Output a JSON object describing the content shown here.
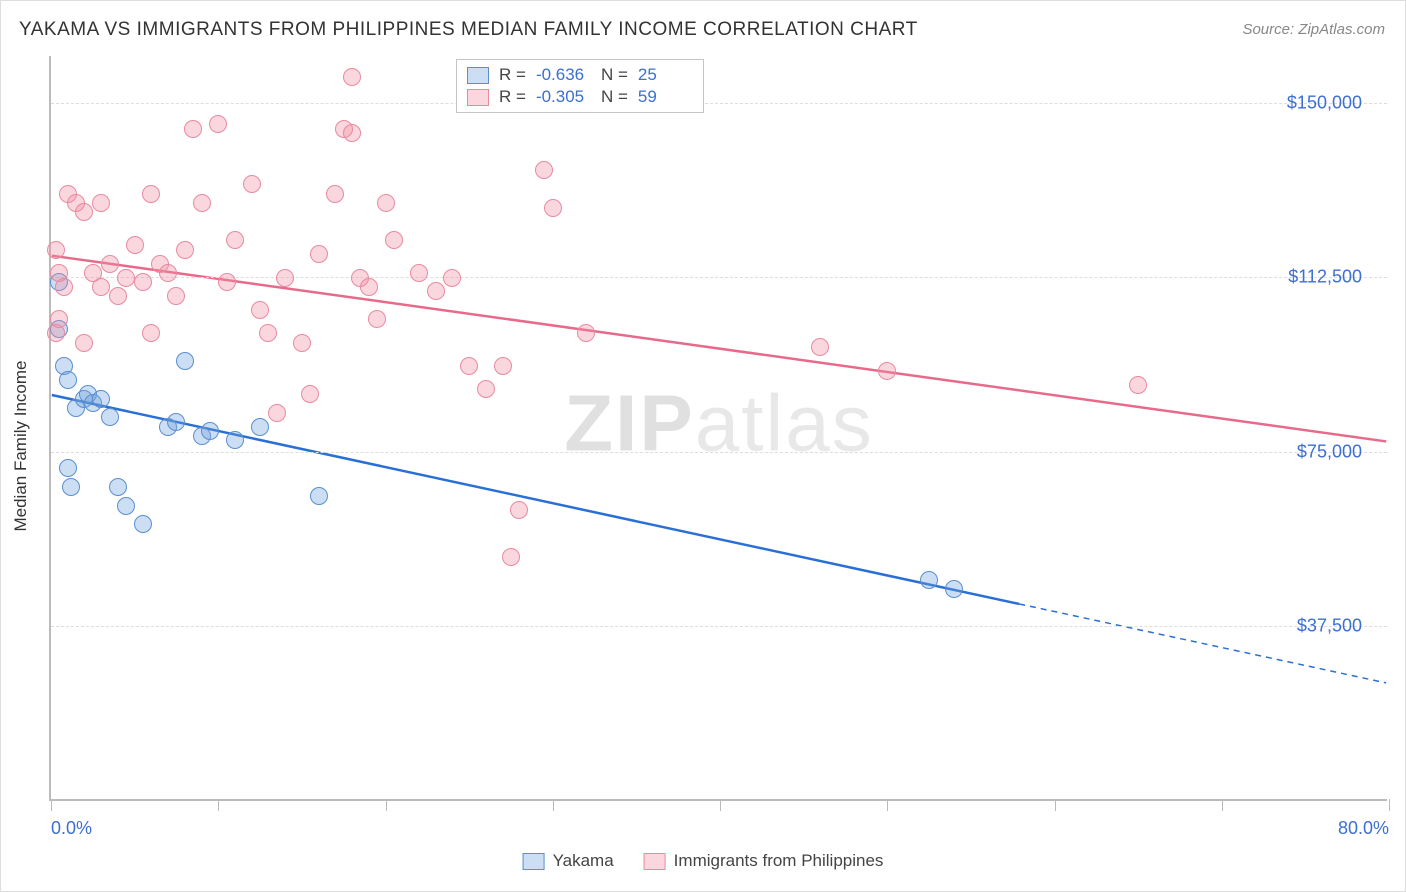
{
  "title": "YAKAMA VS IMMIGRANTS FROM PHILIPPINES MEDIAN FAMILY INCOME CORRELATION CHART",
  "source": "Source: ZipAtlas.com",
  "ylabel": "Median Family Income",
  "watermark_a": "ZIP",
  "watermark_b": "atlas",
  "chart": {
    "type": "scatter",
    "xlim": [
      0,
      80
    ],
    "ylim": [
      0,
      160000
    ],
    "background_color": "#ffffff",
    "grid_color": "#dddddd",
    "axis_color": "#bbbbbb",
    "tick_label_color": "#3b6fd4",
    "x_ticks": [
      0,
      10,
      20,
      30,
      40,
      50,
      60,
      70,
      80
    ],
    "x_tick_labels": {
      "0": "0.0%",
      "80": "80.0%"
    },
    "y_gridlines": [
      37500,
      75000,
      112500,
      150000
    ],
    "y_tick_labels": {
      "37500": "$37,500",
      "75000": "$75,000",
      "112500": "$112,500",
      "150000": "$150,000"
    },
    "series": [
      {
        "name": "Yakama",
        "fill": "rgba(108,160,220,0.35)",
        "stroke": "#5a8fd0",
        "line_color": "#2a6fd6",
        "line_width": 2.5,
        "marker_r": 9,
        "R_label": "R =",
        "R_value": "-0.636",
        "N_label": "N =",
        "N_value": "25",
        "trend": {
          "x1": 0,
          "y1": 87000,
          "x2_solid": 58,
          "y2_solid": 42000,
          "x2": 80,
          "y2": 25000
        },
        "points": [
          [
            0.5,
            111000
          ],
          [
            0.5,
            101000
          ],
          [
            0.8,
            93000
          ],
          [
            1.0,
            90000
          ],
          [
            1.5,
            84000
          ],
          [
            1.0,
            71000
          ],
          [
            1.2,
            67000
          ],
          [
            2.0,
            86000
          ],
          [
            2.2,
            87000
          ],
          [
            2.5,
            85000
          ],
          [
            3.0,
            86000
          ],
          [
            3.5,
            82000
          ],
          [
            4.0,
            67000
          ],
          [
            4.5,
            63000
          ],
          [
            5.5,
            59000
          ],
          [
            7.0,
            80000
          ],
          [
            7.5,
            81000
          ],
          [
            8.0,
            94000
          ],
          [
            9.0,
            78000
          ],
          [
            9.5,
            79000
          ],
          [
            11.0,
            77000
          ],
          [
            12.5,
            80000
          ],
          [
            16.0,
            65000
          ],
          [
            52.5,
            47000
          ],
          [
            54.0,
            45000
          ]
        ]
      },
      {
        "name": "Immigrants from Philippines",
        "fill": "rgba(240,140,160,0.35)",
        "stroke": "#e88aa0",
        "line_color": "#e76a8a",
        "line_width": 2.5,
        "marker_r": 9,
        "R_label": "R =",
        "R_value": "-0.305",
        "N_label": "N =",
        "N_value": "59",
        "trend": {
          "x1": 0,
          "y1": 117000,
          "x2_solid": 80,
          "y2_solid": 77000,
          "x2": 80,
          "y2": 77000
        },
        "points": [
          [
            0.3,
            118000
          ],
          [
            0.5,
            113000
          ],
          [
            0.8,
            110000
          ],
          [
            0.3,
            100000
          ],
          [
            0.5,
            103000
          ],
          [
            1.0,
            130000
          ],
          [
            1.5,
            128000
          ],
          [
            2.0,
            126000
          ],
          [
            2.5,
            113000
          ],
          [
            2.0,
            98000
          ],
          [
            3.0,
            128000
          ],
          [
            3.5,
            115000
          ],
          [
            3.0,
            110000
          ],
          [
            4.0,
            108000
          ],
          [
            4.5,
            112000
          ],
          [
            5.0,
            119000
          ],
          [
            5.5,
            111000
          ],
          [
            6.0,
            100000
          ],
          [
            6.5,
            115000
          ],
          [
            6.0,
            130000
          ],
          [
            7.0,
            113000
          ],
          [
            7.5,
            108000
          ],
          [
            8.0,
            118000
          ],
          [
            8.5,
            144000
          ],
          [
            9.0,
            128000
          ],
          [
            10.0,
            145000
          ],
          [
            10.5,
            111000
          ],
          [
            11.0,
            120000
          ],
          [
            12.0,
            132000
          ],
          [
            12.5,
            105000
          ],
          [
            13.0,
            100000
          ],
          [
            13.5,
            83000
          ],
          [
            14.0,
            112000
          ],
          [
            15.0,
            98000
          ],
          [
            15.5,
            87000
          ],
          [
            16.0,
            117000
          ],
          [
            17.0,
            130000
          ],
          [
            17.5,
            144000
          ],
          [
            18.0,
            143000
          ],
          [
            18.0,
            155000
          ],
          [
            18.5,
            112000
          ],
          [
            19.0,
            110000
          ],
          [
            19.5,
            103000
          ],
          [
            20.0,
            128000
          ],
          [
            20.5,
            120000
          ],
          [
            22.0,
            113000
          ],
          [
            23.0,
            109000
          ],
          [
            24.0,
            112000
          ],
          [
            25.0,
            93000
          ],
          [
            26.0,
            88000
          ],
          [
            27.5,
            52000
          ],
          [
            27.0,
            93000
          ],
          [
            28.0,
            62000
          ],
          [
            29.5,
            135000
          ],
          [
            30.0,
            127000
          ],
          [
            32.0,
            100000
          ],
          [
            46.0,
            97000
          ],
          [
            50.0,
            92000
          ],
          [
            65.0,
            89000
          ]
        ]
      }
    ]
  },
  "bottom_legend": [
    {
      "label": "Yakama",
      "fill": "rgba(108,160,220,0.35)",
      "stroke": "#5a8fd0"
    },
    {
      "label": "Immigrants from Philippines",
      "fill": "rgba(240,140,160,0.35)",
      "stroke": "#e88aa0"
    }
  ]
}
